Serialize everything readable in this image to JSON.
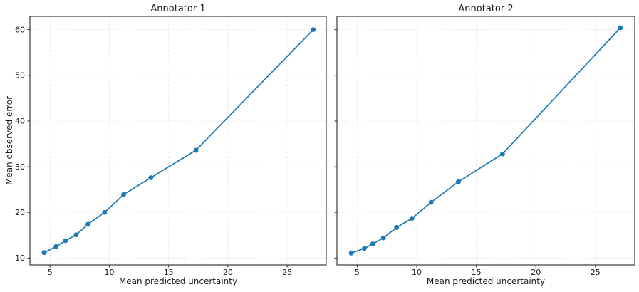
{
  "figure": {
    "background": "#ffffff",
    "accent_color": "#1f77b4",
    "grid_color": "#d6d6d6",
    "spine_color": "#3a3a3a",
    "text_color": "#1a1a1a"
  },
  "chart_data": [
    {
      "type": "line",
      "title": "Annotator 1",
      "xlabel": "Mean predicted uncertainty",
      "ylabel": "Mean observed error",
      "x": [
        4.5,
        5.5,
        6.3,
        7.2,
        8.2,
        9.6,
        11.2,
        13.5,
        17.3,
        27.2
      ],
      "y": [
        11.2,
        12.5,
        13.8,
        15.1,
        17.4,
        20.0,
        23.9,
        27.6,
        33.6,
        60.0
      ],
      "xticks": [
        5,
        10,
        15,
        20,
        25
      ],
      "yticks": [
        10,
        20,
        30,
        40,
        50,
        60
      ],
      "xlim": [
        3.3,
        28.3
      ],
      "ylim": [
        8.5,
        62.9
      ],
      "grid": true,
      "grid_style": "dotted",
      "marker": "circle",
      "legend": false,
      "show_ytick_labels": true
    },
    {
      "type": "line",
      "title": "Annotator 2",
      "xlabel": "Mean predicted uncertainty",
      "ylabel": "",
      "x": [
        4.5,
        5.6,
        6.3,
        7.2,
        8.3,
        9.6,
        11.2,
        13.5,
        17.2,
        27.1
      ],
      "y": [
        11.1,
        12.1,
        13.1,
        14.4,
        16.7,
        18.7,
        22.2,
        26.7,
        32.8,
        60.4
      ],
      "xticks": [
        5,
        10,
        15,
        20,
        25
      ],
      "yticks": [
        10,
        20,
        30,
        40,
        50,
        60
      ],
      "xlim": [
        3.3,
        28.3
      ],
      "ylim": [
        8.5,
        62.9
      ],
      "grid": true,
      "grid_style": "dotted",
      "marker": "circle",
      "legend": false,
      "show_ytick_labels": false
    }
  ]
}
